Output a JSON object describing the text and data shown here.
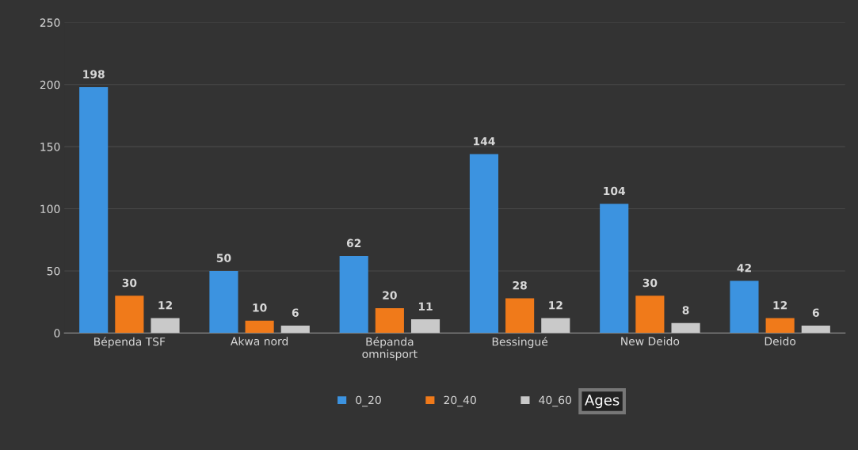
{
  "chart_data": {
    "type": "bar",
    "categories": [
      "Bépenda TSF",
      "Akwa nord",
      "Bépanda\nomnisport",
      "Bessingué",
      "New Deido",
      "Deido"
    ],
    "series": [
      {
        "name": "0_20",
        "color": "#3c93e0",
        "values": [
          198,
          50,
          62,
          144,
          104,
          42
        ]
      },
      {
        "name": "20_40",
        "color": "#f07a1a",
        "values": [
          30,
          10,
          20,
          28,
          30,
          12
        ]
      },
      {
        "name": "40_60",
        "color": "#c9c9c9",
        "values": [
          12,
          6,
          11,
          12,
          8,
          6
        ]
      }
    ],
    "ylim": [
      0,
      250
    ],
    "yticks": [
      0,
      50,
      100,
      150,
      200,
      250
    ],
    "grid": "y",
    "data_labels": true,
    "legend": "bottom",
    "legend_title": "Ages"
  }
}
